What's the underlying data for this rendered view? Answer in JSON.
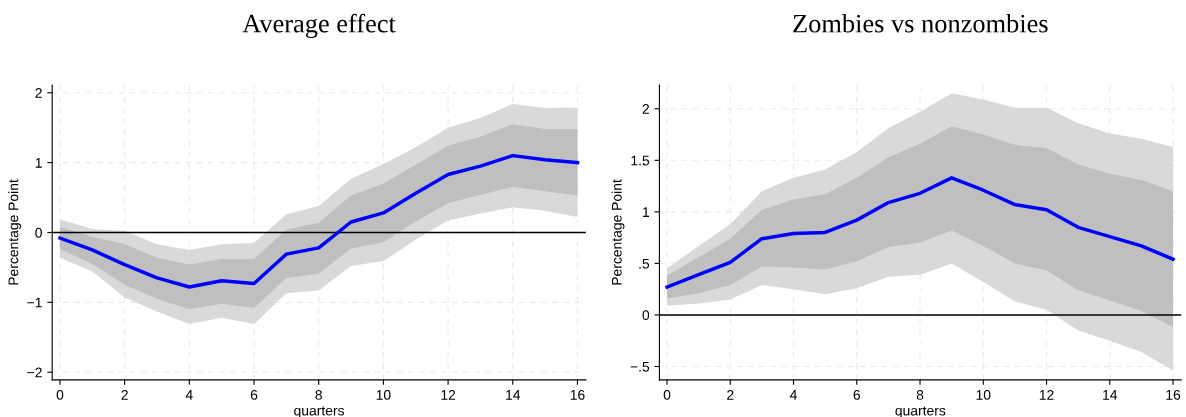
{
  "chart_data": [
    {
      "type": "line",
      "title": "Average effect",
      "xlabel": "quarters",
      "ylabel": "Percentage Point",
      "x": [
        0,
        1,
        2,
        3,
        4,
        5,
        6,
        7,
        8,
        9,
        10,
        11,
        12,
        13,
        14,
        15,
        16
      ],
      "series": [
        {
          "type": "area",
          "color": "#d9d9d9",
          "values": [
            null,
            null,
            null,
            null,
            null,
            null,
            null,
            null,
            null,
            null,
            null,
            null,
            null,
            null,
            null,
            null,
            null
          ],
          "lower": [
            -0.36,
            -0.56,
            -0.93,
            -1.13,
            -1.31,
            -1.22,
            -1.31,
            -0.87,
            -0.83,
            -0.48,
            -0.41,
            -0.1,
            0.17,
            0.27,
            0.36,
            0.31,
            0.22
          ],
          "upper": [
            0.19,
            0.05,
            0.02,
            -0.17,
            -0.25,
            -0.17,
            -0.15,
            0.26,
            0.38,
            0.77,
            0.98,
            1.22,
            1.5,
            1.64,
            1.84,
            1.78,
            1.79
          ]
        },
        {
          "type": "area",
          "color": "#bfbfbf",
          "values": [
            null,
            null,
            null,
            null,
            null,
            null,
            null,
            null,
            null,
            null,
            null,
            null,
            null,
            null,
            null,
            null,
            null
          ],
          "lower": [
            -0.24,
            -0.45,
            -0.75,
            -0.95,
            -1.1,
            -1.02,
            -1.08,
            -0.65,
            -0.59,
            -0.23,
            -0.14,
            0.16,
            0.42,
            0.54,
            0.65,
            0.59,
            0.53
          ],
          "upper": [
            0.08,
            -0.06,
            -0.17,
            -0.36,
            -0.46,
            -0.38,
            -0.38,
            0.04,
            0.14,
            0.53,
            0.7,
            0.97,
            1.24,
            1.37,
            1.55,
            1.48,
            1.48
          ]
        },
        {
          "color": "#0000ff",
          "values": [
            -0.08,
            -0.25,
            -0.46,
            -0.65,
            -0.78,
            -0.69,
            -0.73,
            -0.31,
            -0.22,
            0.15,
            0.28,
            0.56,
            0.83,
            0.95,
            1.1,
            1.04,
            1.0
          ]
        }
      ],
      "xlim": [
        -0.24,
        16.26
      ],
      "xticks": [
        0,
        2,
        4,
        6,
        8,
        10,
        12,
        14,
        16
      ],
      "ylim": [
        -2.11,
        2.11
      ],
      "yticks": [
        {
          "value": -2,
          "label": "−2"
        },
        {
          "value": -1,
          "label": "−1"
        },
        0,
        1,
        2
      ],
      "ref_lines": [
        {
          "axis": "y",
          "value": 0,
          "color": "#000000",
          "line_style": "solid"
        }
      ],
      "grid": true,
      "line_style": "solid",
      "marker": "none",
      "legend": false
    },
    {
      "type": "line",
      "title": "Zombies vs nonzombies",
      "xlabel": "quarters",
      "ylabel": "Percentage Point",
      "x": [
        0,
        1,
        2,
        3,
        4,
        5,
        6,
        7,
        8,
        9,
        10,
        11,
        12,
        13,
        14,
        15,
        16
      ],
      "series": [
        {
          "type": "area",
          "color": "#d9d9d9",
          "values": [
            null,
            null,
            null,
            null,
            null,
            null,
            null,
            null,
            null,
            null,
            null,
            null,
            null,
            null,
            null,
            null,
            null
          ],
          "lower": [
            0.09,
            0.11,
            0.15,
            0.29,
            0.25,
            0.2,
            0.26,
            0.37,
            0.39,
            0.5,
            0.32,
            0.13,
            0.05,
            -0.15,
            -0.25,
            -0.36,
            -0.54
          ],
          "upper": [
            0.45,
            0.67,
            0.88,
            1.2,
            1.33,
            1.41,
            1.58,
            1.81,
            1.97,
            2.15,
            2.09,
            2.01,
            2.01,
            1.86,
            1.76,
            1.71,
            1.63
          ]
        },
        {
          "type": "area",
          "color": "#bfbfbf",
          "values": [
            null,
            null,
            null,
            null,
            null,
            null,
            null,
            null,
            null,
            null,
            null,
            null,
            null,
            null,
            null,
            null,
            null
          ],
          "lower": [
            0.16,
            0.21,
            0.29,
            0.47,
            0.46,
            0.44,
            0.52,
            0.66,
            0.7,
            0.82,
            0.67,
            0.5,
            0.43,
            0.24,
            0.14,
            0.04,
            -0.12
          ],
          "upper": [
            0.38,
            0.56,
            0.74,
            1.02,
            1.12,
            1.17,
            1.33,
            1.53,
            1.66,
            1.83,
            1.75,
            1.65,
            1.62,
            1.46,
            1.37,
            1.31,
            1.2
          ]
        },
        {
          "color": "#0000ff",
          "values": [
            0.27,
            0.39,
            0.51,
            0.74,
            0.79,
            0.8,
            0.92,
            1.09,
            1.18,
            1.33,
            1.21,
            1.07,
            1.02,
            0.85,
            0.76,
            0.67,
            0.54
          ]
        }
      ],
      "xlim": [
        -0.24,
        16.26
      ],
      "xticks": [
        0,
        2,
        4,
        6,
        8,
        10,
        12,
        14,
        16
      ],
      "ylim": [
        -0.63,
        2.23
      ],
      "yticks": [
        {
          "value": -0.5,
          "label": "−.5"
        },
        0,
        {
          "value": 0.5,
          "label": ".5"
        },
        1,
        1.5,
        2
      ],
      "ref_lines": [
        {
          "axis": "y",
          "value": 0,
          "color": "#000000",
          "line_style": "solid"
        }
      ],
      "grid": true,
      "line_style": "solid",
      "marker": "none",
      "legend": false
    }
  ]
}
